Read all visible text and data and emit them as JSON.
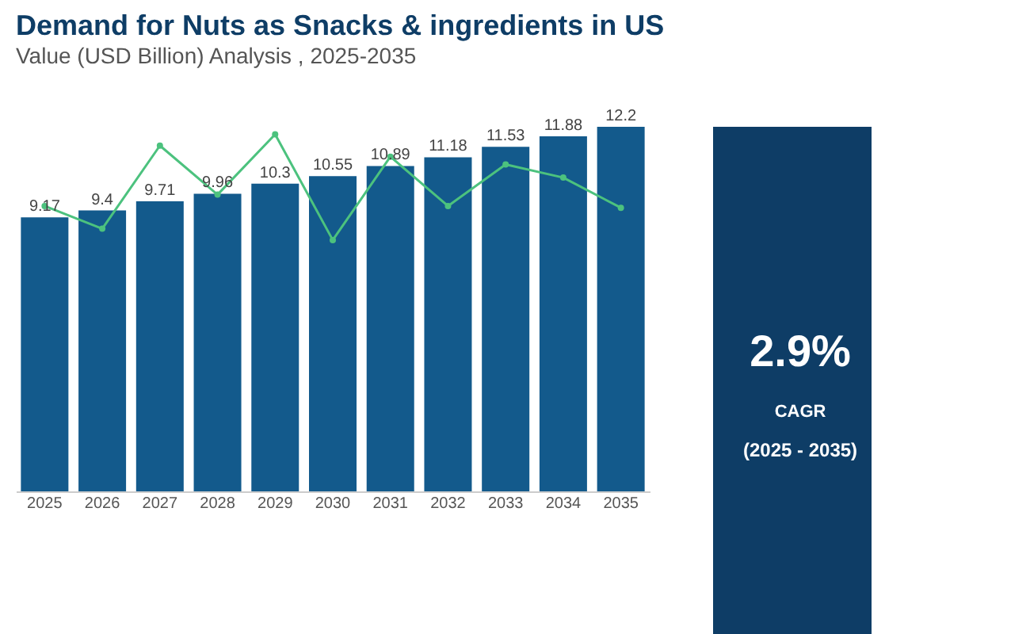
{
  "chart_data": {
    "type": "bar",
    "title": "Demand for Nuts as Snacks & ingredients in US",
    "subtitle": "Value (USD Billion) Analysis , 2025-2035",
    "categories": [
      "2025",
      "2026",
      "2027",
      "2028",
      "2029",
      "2030",
      "2031",
      "2032",
      "2033",
      "2034",
      "2035"
    ],
    "series": [
      {
        "color": "#135a8c",
        "values": [
          9.17,
          9.4,
          9.71,
          9.96,
          10.3,
          10.55,
          10.89,
          11.18,
          11.53,
          11.88,
          12.2
        ],
        "value_labels": [
          "9.17",
          "9.4",
          "9.71",
          "9.96",
          "10.3",
          "10.55",
          "10.89",
          "11.18",
          "11.53",
          "11.88",
          "12.2"
        ]
      },
      {
        "type": "line",
        "color": "#4cc27e",
        "marker": "circle",
        "values": [
          9.55,
          8.79,
          11.57,
          9.93,
          11.95,
          8.41,
          11.2,
          9.55,
          10.94,
          10.5,
          9.49
        ]
      }
    ],
    "grid": false,
    "annotations": [
      "2.9%",
      "CAGR",
      "(2025 - 2035)"
    ]
  }
}
